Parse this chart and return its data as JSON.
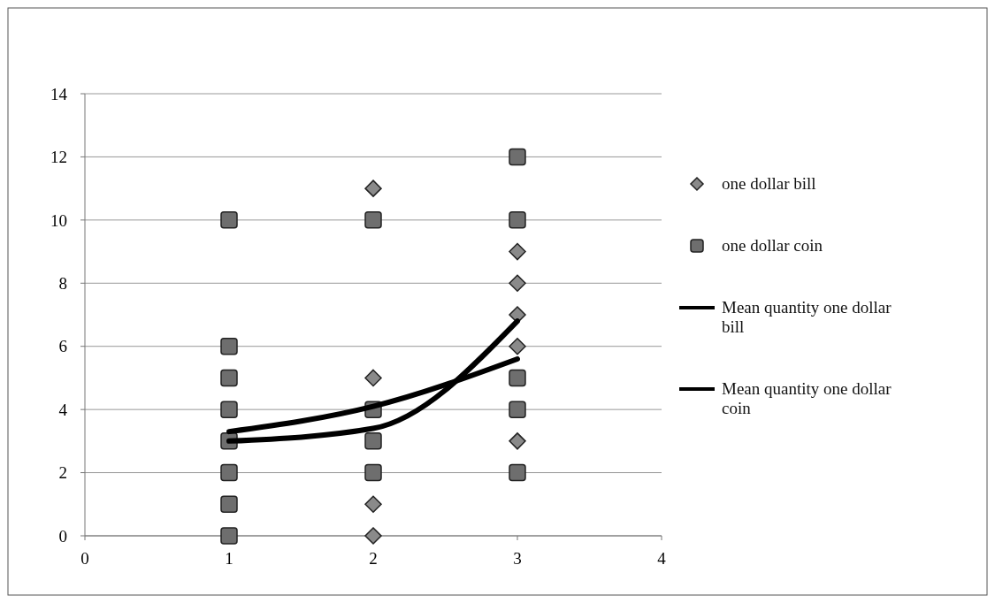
{
  "chart_data": {
    "type": "scatter",
    "xlim": [
      0,
      4
    ],
    "xticks": [
      0,
      1,
      2,
      3,
      4
    ],
    "ylim": [
      0,
      14
    ],
    "yticks": [
      0,
      2,
      4,
      6,
      8,
      10,
      12,
      14
    ],
    "grid": "y",
    "legend": "right",
    "series": [
      {
        "name": "one dollar bill",
        "marker": "diamond",
        "color": "#8a8a8a",
        "x": [
          2,
          2,
          2,
          2,
          3,
          3,
          3,
          3,
          3
        ],
        "values": [
          11,
          5,
          1,
          0,
          9,
          8,
          7,
          6,
          3
        ]
      },
      {
        "name": "one dollar coin",
        "marker": "square",
        "color": "#6e6e6e",
        "x": [
          1,
          1,
          1,
          1,
          1,
          1,
          1,
          1,
          2,
          2,
          2,
          2,
          3,
          3,
          3,
          3,
          3
        ],
        "values": [
          10,
          6,
          5,
          4,
          3,
          2,
          1,
          0,
          10,
          4,
          3,
          2,
          12,
          10,
          5,
          4,
          2
        ]
      },
      {
        "name": "Mean quantity one dollar bill",
        "type": "line",
        "marker": "none",
        "color": "#000000",
        "x": [
          1,
          2,
          3
        ],
        "values": [
          3,
          3.4,
          6.8
        ]
      },
      {
        "name": "Mean quantity one dollar coin",
        "type": "line",
        "marker": "none",
        "color": "#000000",
        "x": [
          1,
          2,
          3
        ],
        "values": [
          3.3,
          4.1,
          5.6
        ]
      }
    ]
  }
}
